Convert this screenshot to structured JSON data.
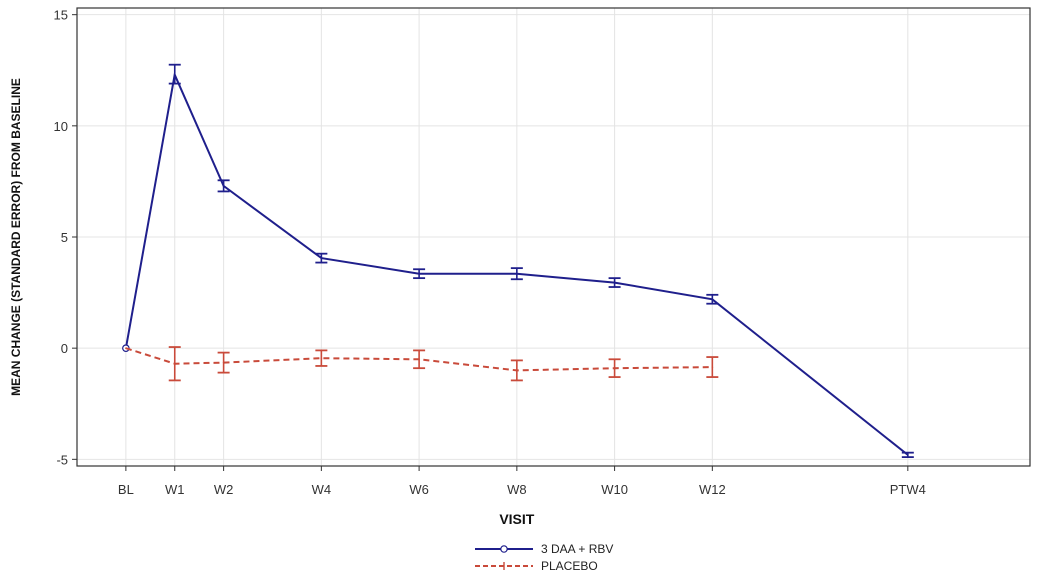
{
  "chart_data": {
    "type": "line",
    "xlabel": "VISIT",
    "ylabel": "MEAN CHANGE (STANDARD ERROR) FROM BASELINE",
    "ylim": [
      -5.3,
      15.3
    ],
    "yticks": [
      -5,
      0,
      5,
      10,
      15
    ],
    "ytick_labels": [
      "-5",
      "0",
      "5",
      "10",
      "15"
    ],
    "x_positions": [
      0,
      1,
      2,
      4,
      6,
      8,
      10,
      12,
      16
    ],
    "xlim": [
      -1.0,
      18.5
    ],
    "categories": [
      "BL",
      "W1",
      "W2",
      "W4",
      "W6",
      "W8",
      "W10",
      "W12",
      "PTW4"
    ],
    "grid": true,
    "legend_position": "bottom-center",
    "series": [
      {
        "name": "3 DAA + RBV",
        "color": "#1f1f8c",
        "line_style": "solid",
        "marker": "circle",
        "values": [
          0,
          12.3,
          7.3,
          4.05,
          3.35,
          3.35,
          2.95,
          2.2,
          -4.8
        ],
        "lower": [
          0,
          11.9,
          7.05,
          3.85,
          3.15,
          3.1,
          2.75,
          2.0,
          -4.9
        ],
        "upper": [
          0,
          12.75,
          7.55,
          4.25,
          3.55,
          3.6,
          3.15,
          2.4,
          -4.7
        ]
      },
      {
        "name": "PLACEBO",
        "color": "#c94a3a",
        "line_style": "dashed",
        "marker": "plus",
        "values": [
          0,
          -0.7,
          -0.65,
          -0.45,
          -0.5,
          -1.0,
          -0.9,
          -0.85,
          null
        ],
        "lower": [
          0,
          -1.45,
          -1.1,
          -0.8,
          -0.9,
          -1.45,
          -1.3,
          -1.3,
          null
        ],
        "upper": [
          0,
          0.05,
          -0.2,
          -0.1,
          -0.1,
          -0.55,
          -0.5,
          -0.4,
          null
        ]
      }
    ]
  }
}
